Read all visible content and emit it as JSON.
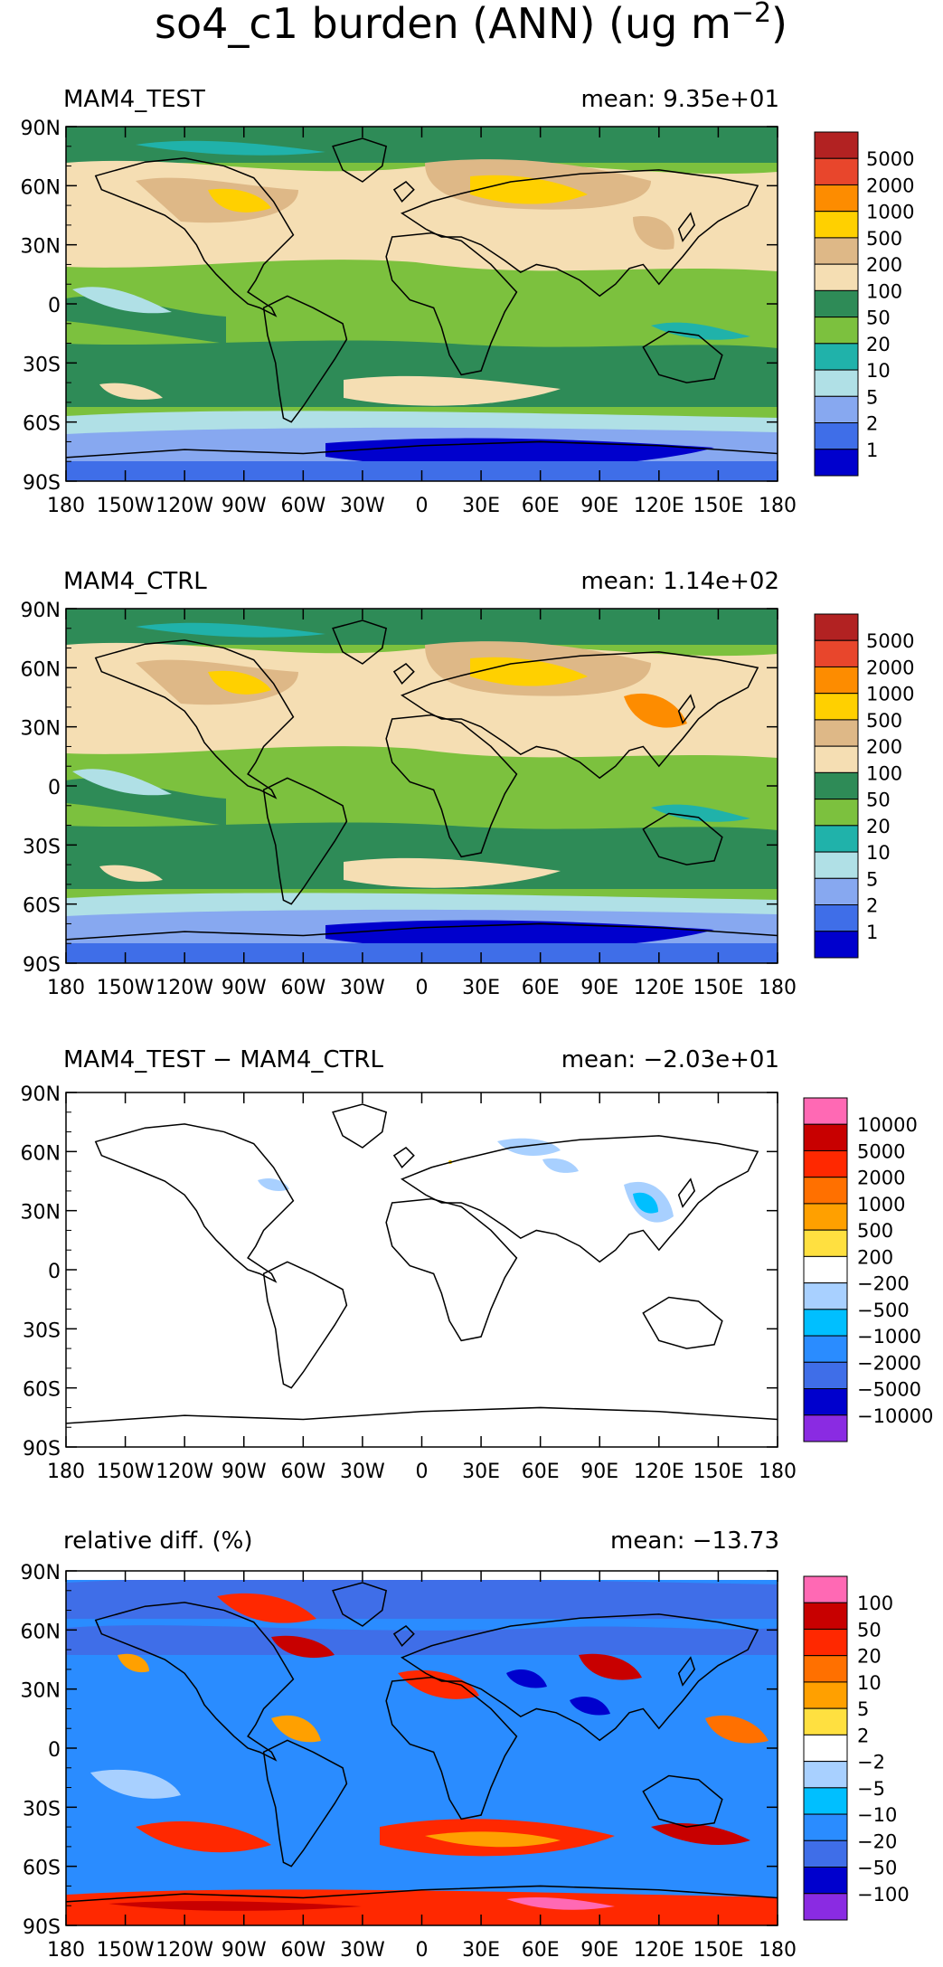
{
  "figure": {
    "title": "so4_c1 burden (ANN) (ug m",
    "title_exponent": "−2",
    "title_close": ")"
  },
  "axes": {
    "lat_ticks": [
      "90N",
      "60N",
      "30N",
      "0",
      "30S",
      "60S",
      "90S"
    ],
    "lon_ticks": [
      "180",
      "150W",
      "120W",
      "90W",
      "60W",
      "30W",
      "0",
      "30E",
      "60E",
      "90E",
      "120E",
      "150E",
      "180"
    ]
  },
  "panels": [
    {
      "id": "test",
      "left_label": "MAM4_TEST",
      "right_label": "mean: 9.35e+01",
      "colorbar": {
        "labels": [
          "5000",
          "2000",
          "1000",
          "500",
          "200",
          "100",
          "50",
          "20",
          "10",
          "5",
          "2",
          "1"
        ],
        "colors": [
          "#b22222",
          "#e8462c",
          "#fd8c00",
          "#ffd000",
          "#deb887",
          "#f5deb3",
          "#2e8b57",
          "#7cc13e",
          "#20b2aa",
          "#b0e0e6",
          "#87a8f0",
          "#3f6ee8",
          "#0000cd"
        ]
      }
    },
    {
      "id": "ctrl",
      "left_label": "MAM4_CTRL",
      "right_label": "mean: 1.14e+02",
      "colorbar": {
        "labels": [
          "5000",
          "2000",
          "1000",
          "500",
          "200",
          "100",
          "50",
          "20",
          "10",
          "5",
          "2",
          "1"
        ],
        "colors": [
          "#b22222",
          "#e8462c",
          "#fd8c00",
          "#ffd000",
          "#deb887",
          "#f5deb3",
          "#2e8b57",
          "#7cc13e",
          "#20b2aa",
          "#b0e0e6",
          "#87a8f0",
          "#3f6ee8",
          "#0000cd"
        ]
      }
    },
    {
      "id": "diff",
      "left_label": "MAM4_TEST − MAM4_CTRL",
      "right_label": "mean: −2.03e+01",
      "colorbar": {
        "labels": [
          "10000",
          "5000",
          "2000",
          "1000",
          "500",
          "200",
          "−200",
          "−500",
          "−1000",
          "−2000",
          "−5000",
          "−10000"
        ],
        "colors": [
          "#ff69b4",
          "#c80000",
          "#ff2800",
          "#ff7000",
          "#ffa000",
          "#ffe040",
          "#ffffff",
          "#a8d0ff",
          "#00bfff",
          "#2a8cff",
          "#3f6ee8",
          "#0000cd",
          "#8a2be2"
        ]
      }
    },
    {
      "id": "rel",
      "left_label": "relative diff. (%)",
      "right_label": "mean: −13.73",
      "colorbar": {
        "labels": [
          "100",
          "50",
          "20",
          "10",
          "5",
          "2",
          "−2",
          "−5",
          "−10",
          "−20",
          "−50",
          "−100"
        ],
        "colors": [
          "#ff69b4",
          "#c80000",
          "#ff2800",
          "#ff7000",
          "#ffa000",
          "#ffe040",
          "#ffffff",
          "#a8d0ff",
          "#00bfff",
          "#2a8cff",
          "#3f6ee8",
          "#0000cd",
          "#8a2be2"
        ]
      }
    }
  ]
}
